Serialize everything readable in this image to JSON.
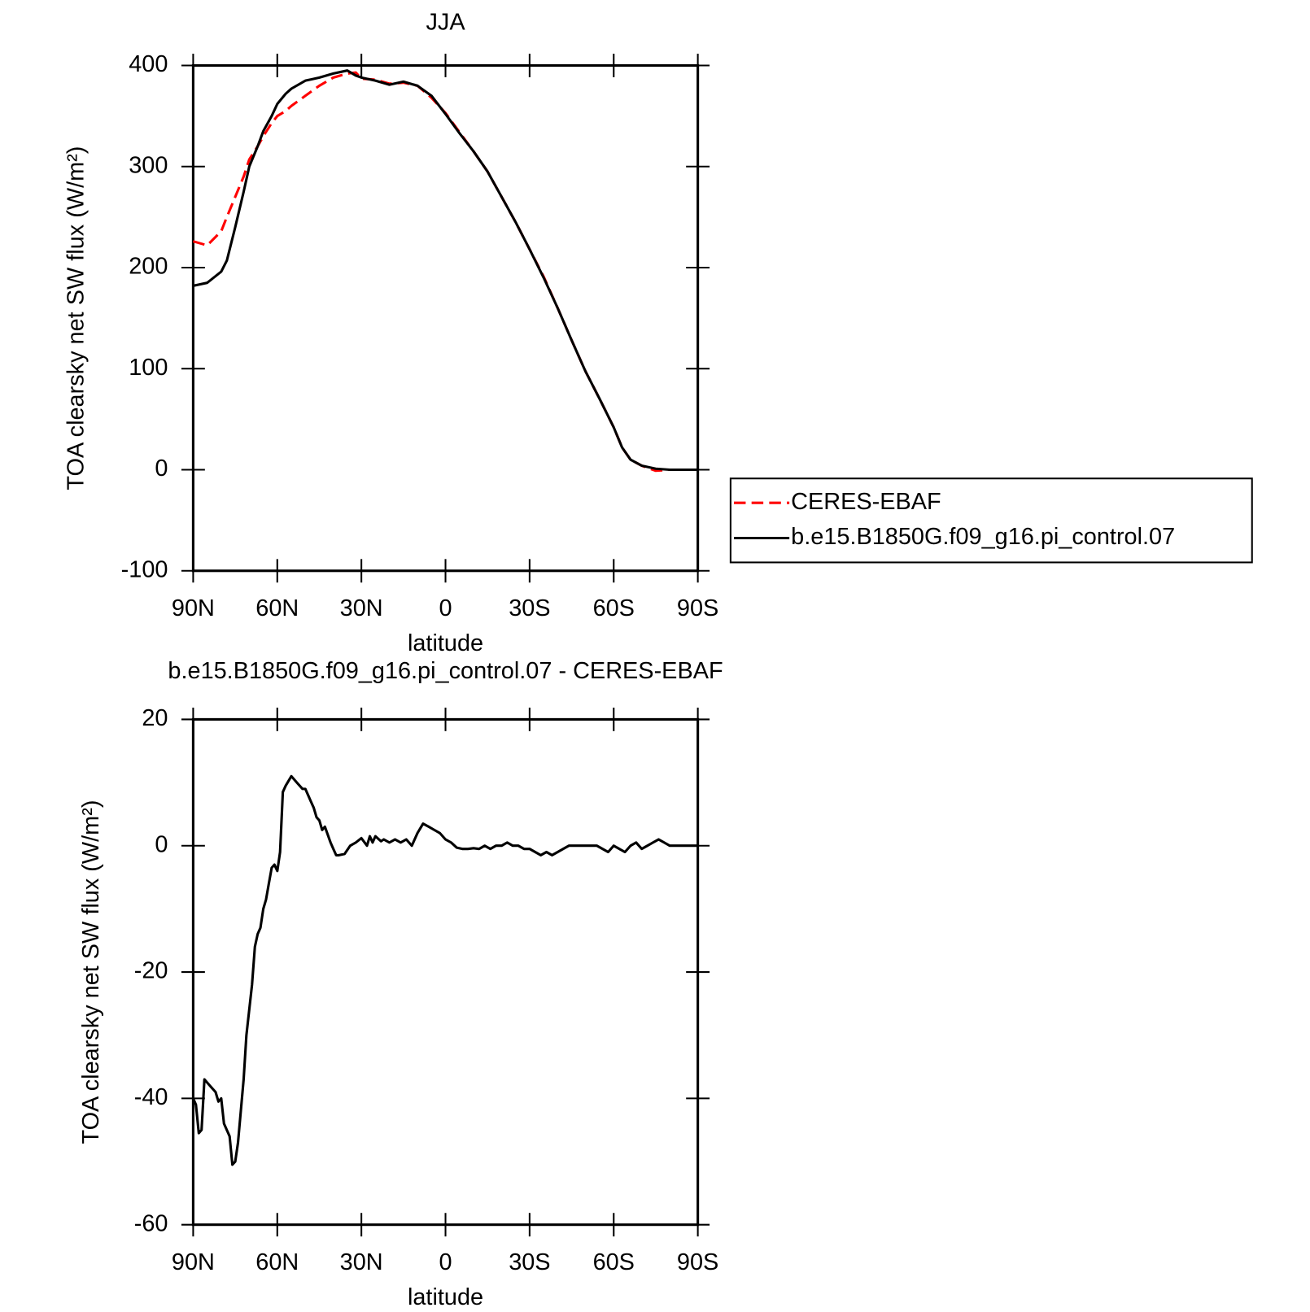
{
  "chart_data": [
    {
      "type": "line",
      "title": "JJA",
      "xlabel": "latitude",
      "ylabel": "TOA clearsky net SW flux (W/m²)",
      "xlim": [
        90,
        -90
      ],
      "xticks": [
        {
          "value": 90,
          "label": "90N"
        },
        {
          "value": 60,
          "label": "60N"
        },
        {
          "value": 30,
          "label": "30N"
        },
        0,
        {
          "value": -30,
          "label": "30S"
        },
        {
          "value": -60,
          "label": "60S"
        },
        {
          "value": -90,
          "label": "90S"
        }
      ],
      "ylim": [
        -100,
        400
      ],
      "yticks": [
        -100,
        0,
        100,
        200,
        300,
        400
      ],
      "legend": "right",
      "x": [
        90,
        85,
        80,
        78,
        75,
        72,
        70,
        67,
        65,
        62,
        60,
        57,
        55,
        50,
        45,
        40,
        35,
        32,
        30,
        25,
        20,
        15,
        10,
        5,
        0,
        -5,
        -10,
        -15,
        -20,
        -25,
        -30,
        -35,
        -40,
        -45,
        -50,
        -55,
        -60,
        -63,
        -66,
        -70,
        -75,
        -80,
        -85,
        -90
      ],
      "series": [
        {
          "name": "CERES-EBAF",
          "color": "#ff0000",
          "dashed": true,
          "values": [
            226,
            222,
            236,
            250,
            270,
            290,
            307,
            320,
            330,
            343,
            350,
            355,
            360,
            370,
            380,
            388,
            392,
            393,
            387,
            386,
            382,
            383,
            380,
            368,
            353,
            334,
            315,
            295,
            270,
            245,
            218,
            191,
            160,
            128,
            97,
            70,
            42,
            22,
            10,
            4,
            -1,
            0,
            0,
            0
          ]
        },
        {
          "name": "b.e15.B1850G.f09_g16.pi_control.07",
          "color": "#000000",
          "dashed": false,
          "values": [
            182,
            185,
            196,
            207,
            240,
            275,
            300,
            320,
            335,
            350,
            362,
            372,
            377,
            385,
            388,
            392,
            395,
            390,
            388,
            385,
            381,
            384,
            380,
            370,
            352,
            333,
            315,
            295,
            270,
            245,
            218,
            190,
            160,
            128,
            97,
            70,
            42,
            22,
            10,
            4,
            1,
            0,
            0,
            0
          ]
        }
      ]
    },
    {
      "type": "line",
      "title": "b.e15.B1850G.f09_g16.pi_control.07 - CERES-EBAF",
      "xlabel": "latitude",
      "ylabel": "TOA clearsky net SW flux (W/m²)",
      "xlim": [
        90,
        -90
      ],
      "xticks": [
        {
          "value": 90,
          "label": "90N"
        },
        {
          "value": 60,
          "label": "60N"
        },
        {
          "value": 30,
          "label": "30N"
        },
        0,
        {
          "value": -30,
          "label": "30S"
        },
        {
          "value": -60,
          "label": "60S"
        },
        {
          "value": -90,
          "label": "90S"
        }
      ],
      "ylim": [
        -60,
        20
      ],
      "yticks": [
        -60,
        -40,
        -20,
        0,
        20
      ],
      "x": [
        90,
        89,
        88,
        87,
        86,
        84,
        82,
        81,
        80,
        79,
        77,
        76,
        75,
        74,
        72,
        71,
        69,
        68,
        67,
        66,
        65,
        64,
        63,
        62,
        61,
        60,
        59,
        58,
        57,
        55,
        53,
        51,
        50,
        48,
        47,
        46,
        45,
        44,
        43,
        41,
        40,
        39,
        38,
        36,
        34,
        32,
        30,
        28,
        27,
        26,
        25,
        23,
        22,
        20,
        18,
        16,
        14,
        12,
        10,
        8,
        6,
        4,
        2,
        0,
        -2,
        -4,
        -6,
        -8,
        -10,
        -12,
        -14,
        -16,
        -18,
        -20,
        -22,
        -24,
        -26,
        -28,
        -30,
        -32,
        -34,
        -36,
        -38,
        -40,
        -42,
        -44,
        -46,
        -48,
        -50,
        -52,
        -54,
        -56,
        -58,
        -60,
        -62,
        -64,
        -66,
        -68,
        -70,
        -72,
        -74,
        -76,
        -78,
        -80,
        -82,
        -85,
        -90
      ],
      "series": [
        {
          "color": "#000000",
          "dashed": false,
          "values": [
            -40,
            -41,
            -45.5,
            -45,
            -37,
            -38,
            -39,
            -40.5,
            -40,
            -44,
            -46,
            -50.5,
            -50,
            -47,
            -37,
            -30,
            -22,
            -16,
            -14,
            -13,
            -10,
            -8.5,
            -6,
            -3.5,
            -3,
            -4,
            -1,
            8.5,
            9.5,
            11,
            10,
            9,
            9,
            7,
            6,
            4.5,
            4,
            2.5,
            3,
            0.5,
            -0.5,
            -1.5,
            -1.5,
            -1.3,
            0,
            0.5,
            1.2,
            0,
            1.5,
            0.5,
            1.5,
            0.7,
            1,
            0.5,
            1,
            0.5,
            1,
            0,
            2,
            3.5,
            3,
            2.5,
            2,
            1,
            0.5,
            -0.3,
            -0.5,
            -0.5,
            -0.4,
            -0.5,
            0,
            -0.5,
            0,
            0,
            0.5,
            0,
            0,
            -0.5,
            -0.5,
            -1,
            -1.5,
            -1,
            -1.5,
            -1,
            -0.5,
            0,
            0,
            0,
            0,
            0,
            0,
            -0.5,
            -1,
            0,
            -0.5,
            -1,
            0,
            0.5,
            -0.5,
            0,
            0.5,
            1,
            0.5,
            0,
            0,
            0,
            0
          ]
        }
      ]
    }
  ]
}
